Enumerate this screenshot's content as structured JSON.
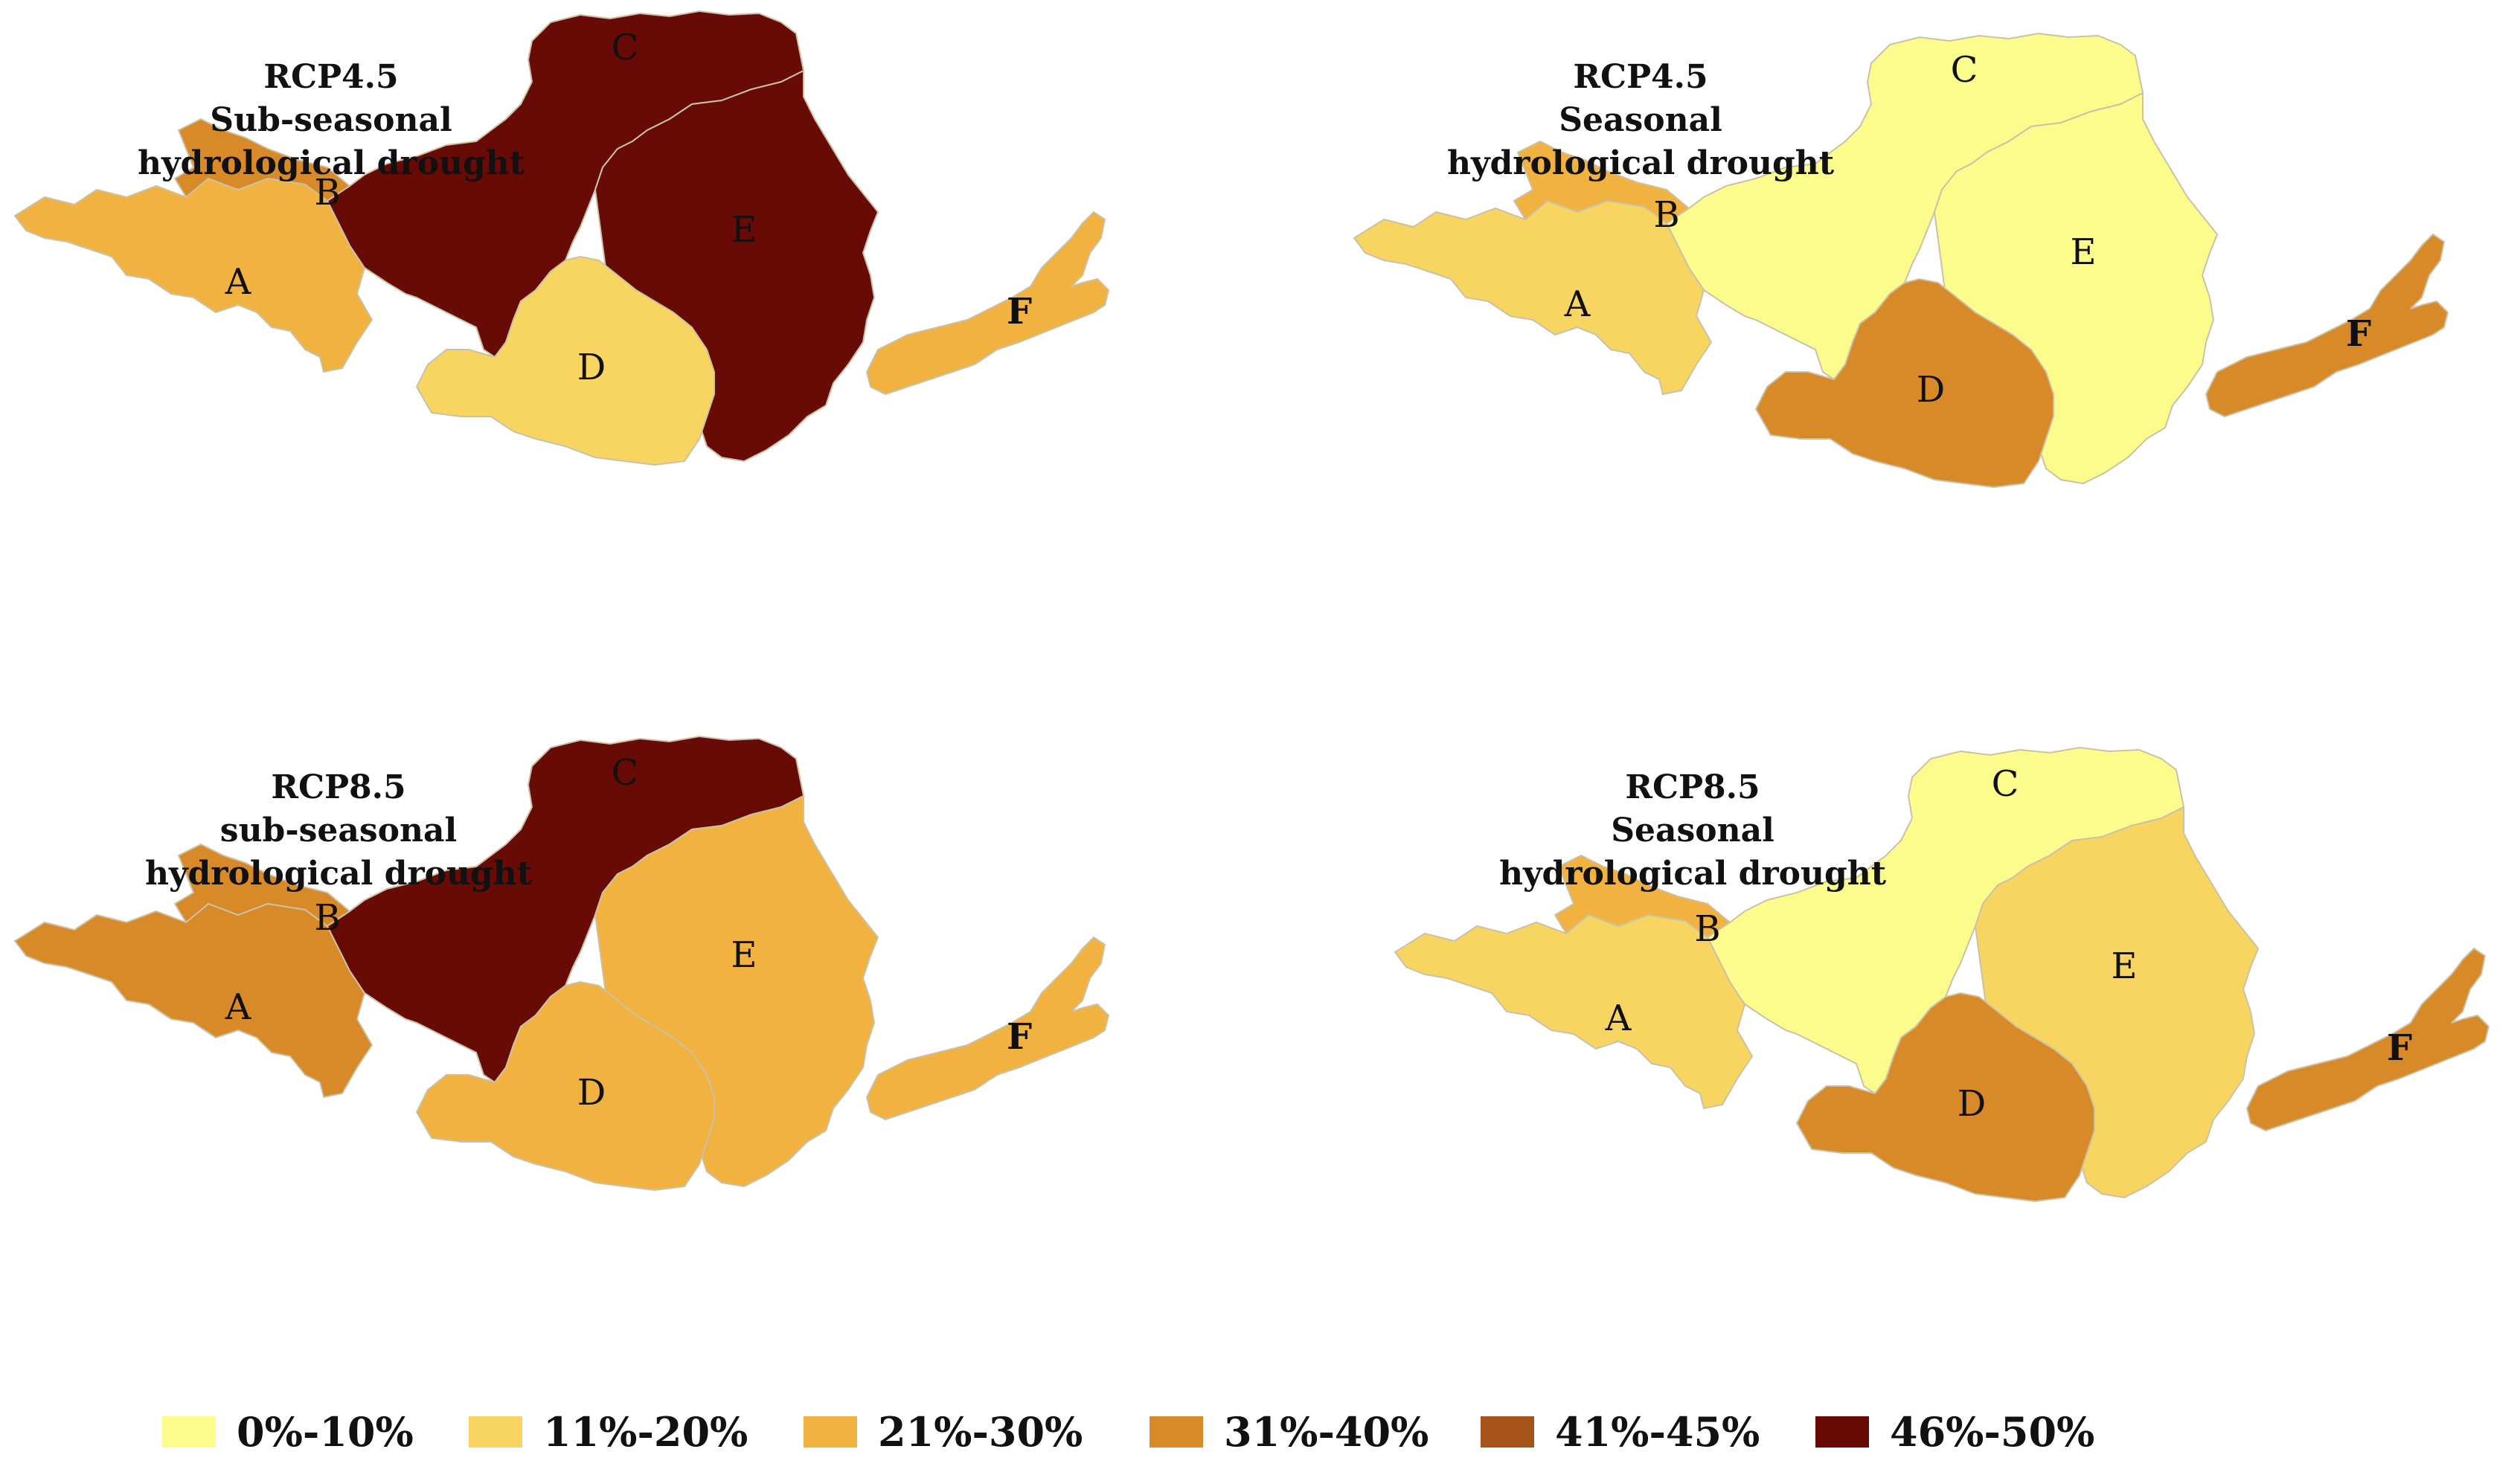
{
  "legend": {
    "classes": [
      {
        "label": "0%-10%",
        "color": "#FCFC8C"
      },
      {
        "label": "11%-20%",
        "color": "#F8D560"
      },
      {
        "label": "21%-30%",
        "color": "#F1B240"
      },
      {
        "label": "31%-40%",
        "color": "#D88A28"
      },
      {
        "label": "41%-45%",
        "color": "#A6531A"
      },
      {
        "label": "46%-50%",
        "color": "#680A05"
      }
    ]
  },
  "panels": [
    {
      "scenario": "RCP4.5",
      "subtitle_1": "Sub-seasonal",
      "subtitle_2": "hydrological drought",
      "regions": {
        "A": "21%-30%",
        "B": "31%-40%",
        "C": "46%-50%",
        "D": "11%-20%",
        "E": "46%-50%",
        "F": "21%-30%"
      }
    },
    {
      "scenario": "RCP4.5",
      "subtitle_1": "Seasonal",
      "subtitle_2": "hydrological drought",
      "regions": {
        "A": "11%-20%",
        "B": "21%-30%",
        "C": "0%-10%",
        "D": "31%-40%",
        "E": "0%-10%",
        "F": "31%-40%"
      }
    },
    {
      "scenario": "RCP8.5",
      "subtitle_1": "sub-seasonal",
      "subtitle_2": "hydrological drought",
      "regions": {
        "A": "31%-40%",
        "B": "31%-40%",
        "C": "46%-50%",
        "D": "21%-30%",
        "E": "21%-30%",
        "F": "21%-30%"
      }
    },
    {
      "scenario": "RCP8.5",
      "subtitle_1": "Seasonal",
      "subtitle_2": "hydrological drought",
      "regions": {
        "A": "11%-20%",
        "B": "21%-30%",
        "C": "0%-10%",
        "D": "31%-40%",
        "E": "11%-20%",
        "F": "31%-40%"
      }
    }
  ]
}
